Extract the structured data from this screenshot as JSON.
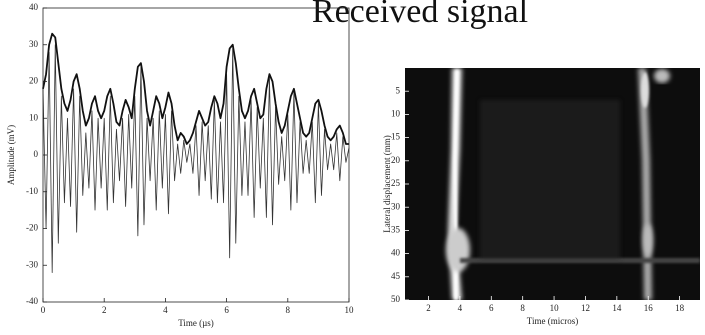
{
  "title": "Received signal",
  "chart_data": [
    {
      "type": "line",
      "xlabel": "Time (µs)",
      "ylabel": "Amplitude (mV)",
      "xlim": [
        0,
        10
      ],
      "ylim": [
        -40,
        40
      ],
      "xticks": [
        0,
        2,
        4,
        6,
        8,
        10
      ],
      "yticks": [
        -40,
        -30,
        -20,
        -10,
        0,
        10,
        20,
        30,
        40
      ],
      "x": [
        0,
        0.1,
        0.2,
        0.3,
        0.4,
        0.5,
        0.6,
        0.7,
        0.8,
        0.9,
        1,
        1.1,
        1.2,
        1.3,
        1.4,
        1.5,
        1.6,
        1.7,
        1.8,
        1.9,
        2,
        2.1,
        2.2,
        2.3,
        2.4,
        2.5,
        2.6,
        2.7,
        2.8,
        2.9,
        3,
        3.1,
        3.2,
        3.3,
        3.4,
        3.5,
        3.6,
        3.7,
        3.8,
        3.9,
        4,
        4.1,
        4.2,
        4.3,
        4.4,
        4.5,
        4.6,
        4.7,
        4.8,
        4.9,
        5,
        5.1,
        5.2,
        5.3,
        5.4,
        5.5,
        5.6,
        5.7,
        5.8,
        5.9,
        6,
        6.1,
        6.2,
        6.3,
        6.4,
        6.5,
        6.6,
        6.7,
        6.8,
        6.9,
        7,
        7.1,
        7.2,
        7.3,
        7.4,
        7.5,
        7.6,
        7.7,
        7.8,
        7.9,
        8,
        8.1,
        8.2,
        8.3,
        8.4,
        8.5,
        8.6,
        8.7,
        8.8,
        8.9,
        9,
        9.1,
        9.2,
        9.3,
        9.4,
        9.5,
        9.6,
        9.7,
        9.8,
        9.9,
        10
      ],
      "series": [
        {
          "color": "#333333",
          "width": 0.8,
          "values": [
            18,
            -20,
            28,
            -32,
            30,
            -24,
            16,
            -13,
            10,
            -14,
            18,
            -21,
            16,
            -11,
            6,
            -9,
            12,
            -15,
            10,
            -9,
            10,
            -15,
            16,
            -13,
            7,
            -7,
            10,
            -14,
            11,
            -9,
            16,
            -22,
            24,
            -19,
            10,
            -7,
            10,
            -15,
            12,
            -9,
            11,
            -16,
            12,
            -7,
            3,
            -5,
            4,
            -2,
            3,
            -5,
            8,
            -11,
            9,
            -7,
            8,
            -12,
            15,
            -13,
            9,
            -13,
            22,
            -28,
            29,
            -24,
            16,
            -11,
            9,
            -11,
            15,
            -17,
            13,
            -9,
            10,
            -17,
            21,
            -19,
            13,
            -8,
            5,
            -7,
            11,
            -15,
            17,
            -13,
            9,
            -5,
            4,
            -5,
            9,
            -13,
            14,
            -11,
            7,
            -4,
            3,
            -4,
            6,
            -7,
            5,
            -2,
            2
          ]
        },
        {
          "color": "#111111",
          "width": 1.8,
          "values": [
            18,
            22,
            30,
            33,
            32,
            25,
            18,
            14,
            12,
            15,
            20,
            22,
            18,
            12,
            8,
            10,
            14,
            16,
            12,
            10,
            12,
            16,
            18,
            14,
            9,
            8,
            12,
            15,
            13,
            10,
            18,
            24,
            25,
            20,
            12,
            8,
            12,
            16,
            14,
            10,
            13,
            17,
            14,
            8,
            4,
            6,
            5,
            3,
            4,
            6,
            9,
            12,
            10,
            8,
            9,
            13,
            16,
            14,
            10,
            14,
            24,
            29,
            30,
            25,
            18,
            12,
            10,
            12,
            16,
            18,
            14,
            10,
            11,
            18,
            22,
            20,
            14,
            9,
            6,
            8,
            12,
            16,
            18,
            14,
            10,
            6,
            5,
            6,
            10,
            14,
            15,
            12,
            8,
            5,
            4,
            5,
            7,
            8,
            6,
            3,
            3
          ]
        }
      ]
    },
    {
      "type": "image",
      "xlabel": "Time (micros)",
      "ylabel": "Lateral displacement (mm)",
      "xlim": [
        0.5,
        19.3
      ],
      "ylim": [
        0,
        50
      ],
      "y_inverted": true,
      "xticks": [
        2,
        4,
        6,
        8,
        10,
        12,
        14,
        16,
        18
      ],
      "yticks": [
        5,
        10,
        15,
        20,
        25,
        30,
        35,
        40,
        45,
        50
      ]
    }
  ]
}
